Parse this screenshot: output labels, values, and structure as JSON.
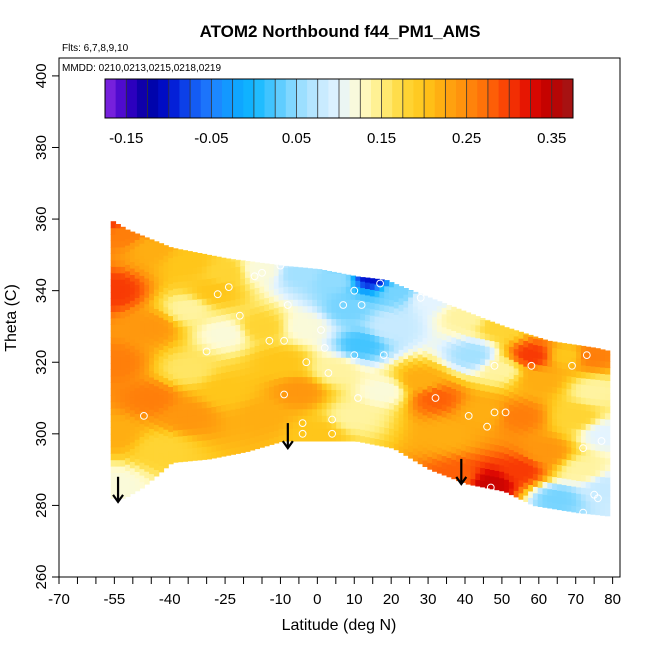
{
  "chart_data": {
    "type": "heatmap",
    "title": "ATOM2 Northbound f44_PM1_AMS",
    "subtitle_flights": "Flts: 6,7,8,9,10",
    "subtitle_dates": "MMDD: 0210,0213,0215,0218,0219",
    "xlabel": "Latitude (deg N)",
    "ylabel": "Theta (C)",
    "xlim": [
      -70,
      82
    ],
    "ylim": [
      260,
      405
    ],
    "x_tick_values": [
      -70,
      -55,
      -40,
      -25,
      -10,
      0,
      10,
      20,
      30,
      40,
      50,
      60,
      70,
      80
    ],
    "x_tick_labels": [
      "-70",
      "-55",
      "-40",
      "-25",
      "-10",
      "0",
      "10",
      "20",
      "30",
      "40",
      "50",
      "60",
      "70",
      "80"
    ],
    "x_minor_ticks": [
      -65,
      -60,
      -50,
      -45,
      -35,
      -30,
      -20,
      -15,
      -5,
      5,
      15,
      25,
      35,
      45,
      55,
      65,
      75
    ],
    "y_tick_values": [
      260,
      280,
      300,
      320,
      340,
      360,
      380,
      400
    ],
    "y_tick_labels": [
      "260",
      "280",
      "300",
      "320",
      "340",
      "360",
      "380",
      "400"
    ],
    "colorbar": {
      "range": [
        -0.175,
        0.375
      ],
      "tick_values": [
        -0.15,
        -0.05,
        0.05,
        0.15,
        0.25,
        0.35
      ],
      "tick_labels": [
        "-0.15",
        "-0.05",
        "0.05",
        "0.15",
        "0.25",
        "0.35"
      ],
      "color_stops": [
        {
          "v": -0.175,
          "c": "#8a2be2"
        },
        {
          "v": -0.15,
          "c": "#3b00c8"
        },
        {
          "v": -0.125,
          "c": "#0000a0"
        },
        {
          "v": -0.1,
          "c": "#0010d0"
        },
        {
          "v": -0.075,
          "c": "#1050f0"
        },
        {
          "v": -0.05,
          "c": "#2080ff"
        },
        {
          "v": -0.025,
          "c": "#0fa0ff"
        },
        {
          "v": 0.0,
          "c": "#10b8ff"
        },
        {
          "v": 0.025,
          "c": "#50c8ff"
        },
        {
          "v": 0.05,
          "c": "#90dcff"
        },
        {
          "v": 0.075,
          "c": "#c0e8ff"
        },
        {
          "v": 0.1,
          "c": "#e4f4ff"
        },
        {
          "v": 0.125,
          "c": "#fffbd0"
        },
        {
          "v": 0.15,
          "c": "#ffee80"
        },
        {
          "v": 0.175,
          "c": "#ffd83a"
        },
        {
          "v": 0.2,
          "c": "#ffc61a"
        },
        {
          "v": 0.225,
          "c": "#ffa810"
        },
        {
          "v": 0.25,
          "c": "#ff8c0c"
        },
        {
          "v": 0.275,
          "c": "#ff6a08"
        },
        {
          "v": 0.3,
          "c": "#f83a04"
        },
        {
          "v": 0.325,
          "c": "#e00a02"
        },
        {
          "v": 0.35,
          "c": "#bc0000"
        },
        {
          "v": 0.375,
          "c": "#a01818"
        }
      ]
    },
    "field_points": [
      {
        "lat": -57,
        "theta": 360,
        "value": 0.3
      },
      {
        "lat": -52,
        "theta": 356,
        "value": 0.26
      },
      {
        "lat": -45,
        "theta": 352,
        "value": 0.22
      },
      {
        "lat": -35,
        "theta": 348,
        "value": 0.2
      },
      {
        "lat": -25,
        "theta": 345,
        "value": 0.18
      },
      {
        "lat": -15,
        "theta": 346,
        "value": 0.12
      },
      {
        "lat": -5,
        "theta": 345,
        "value": 0.06
      },
      {
        "lat": 5,
        "theta": 343,
        "value": 0.05
      },
      {
        "lat": 15,
        "theta": 344,
        "value": -0.1
      },
      {
        "lat": 22,
        "theta": 340,
        "value": 0.04
      },
      {
        "lat": 30,
        "theta": 338,
        "value": 0.1
      },
      {
        "lat": 40,
        "theta": 333,
        "value": 0.14
      },
      {
        "lat": 50,
        "theta": 330,
        "value": 0.18
      },
      {
        "lat": 58,
        "theta": 322,
        "value": 0.3
      },
      {
        "lat": 68,
        "theta": 322,
        "value": 0.2
      },
      {
        "lat": 74,
        "theta": 322,
        "value": 0.26
      },
      {
        "lat": -55,
        "theta": 340,
        "value": 0.3
      },
      {
        "lat": -55,
        "theta": 320,
        "value": 0.26
      },
      {
        "lat": -55,
        "theta": 300,
        "value": 0.22
      },
      {
        "lat": -55,
        "theta": 286,
        "value": 0.12
      },
      {
        "lat": -45,
        "theta": 330,
        "value": 0.24
      },
      {
        "lat": -45,
        "theta": 310,
        "value": 0.26
      },
      {
        "lat": -42,
        "theta": 296,
        "value": 0.18
      },
      {
        "lat": -35,
        "theta": 335,
        "value": 0.14
      },
      {
        "lat": -35,
        "theta": 318,
        "value": 0.16
      },
      {
        "lat": -35,
        "theta": 305,
        "value": 0.24
      },
      {
        "lat": -28,
        "theta": 340,
        "value": 0.2
      },
      {
        "lat": -25,
        "theta": 328,
        "value": 0.12
      },
      {
        "lat": -25,
        "theta": 312,
        "value": 0.2
      },
      {
        "lat": -15,
        "theta": 330,
        "value": 0.18
      },
      {
        "lat": -15,
        "theta": 305,
        "value": 0.22
      },
      {
        "lat": -10,
        "theta": 320,
        "value": 0.2
      },
      {
        "lat": -5,
        "theta": 312,
        "value": 0.24
      },
      {
        "lat": -3,
        "theta": 330,
        "value": 0.12
      },
      {
        "lat": 0,
        "theta": 300,
        "value": 0.2
      },
      {
        "lat": 5,
        "theta": 318,
        "value": 0.14
      },
      {
        "lat": 8,
        "theta": 335,
        "value": 0.04
      },
      {
        "lat": 10,
        "theta": 305,
        "value": 0.14
      },
      {
        "lat": 12,
        "theta": 325,
        "value": 0.02
      },
      {
        "lat": 18,
        "theta": 312,
        "value": 0.12
      },
      {
        "lat": 20,
        "theta": 330,
        "value": 0.08
      },
      {
        "lat": 28,
        "theta": 315,
        "value": 0.22
      },
      {
        "lat": 32,
        "theta": 310,
        "value": 0.28
      },
      {
        "lat": 35,
        "theta": 300,
        "value": 0.22
      },
      {
        "lat": 38,
        "theta": 288,
        "value": 0.28
      },
      {
        "lat": 42,
        "theta": 322,
        "value": 0.06
      },
      {
        "lat": 45,
        "theta": 306,
        "value": 0.22
      },
      {
        "lat": 47,
        "theta": 286,
        "value": 0.34
      },
      {
        "lat": 50,
        "theta": 318,
        "value": 0.14
      },
      {
        "lat": 55,
        "theta": 305,
        "value": 0.26
      },
      {
        "lat": 55,
        "theta": 290,
        "value": 0.3
      },
      {
        "lat": 60,
        "theta": 315,
        "value": 0.22
      },
      {
        "lat": 62,
        "theta": 295,
        "value": 0.24
      },
      {
        "lat": 65,
        "theta": 282,
        "value": 0.04
      },
      {
        "lat": 70,
        "theta": 305,
        "value": 0.18
      },
      {
        "lat": 72,
        "theta": 290,
        "value": 0.14
      },
      {
        "lat": 75,
        "theta": 312,
        "value": 0.14
      },
      {
        "lat": 78,
        "theta": 300,
        "value": 0.1
      },
      {
        "lat": 78,
        "theta": 285,
        "value": 0.08
      }
    ],
    "domain_top_boundary": [
      [
        -57,
        360
      ],
      [
        -52,
        357
      ],
      [
        -40,
        352
      ],
      [
        -25,
        349
      ],
      [
        -10,
        347
      ],
      [
        0,
        346
      ],
      [
        10,
        344
      ],
      [
        18,
        343
      ],
      [
        25,
        340
      ],
      [
        35,
        336
      ],
      [
        50,
        330
      ],
      [
        62,
        326
      ],
      [
        75,
        324
      ],
      [
        79,
        323
      ]
    ],
    "domain_bottom_boundary": [
      [
        79,
        277
      ],
      [
        70,
        278
      ],
      [
        58,
        280
      ],
      [
        50,
        284
      ],
      [
        40,
        286
      ],
      [
        30,
        290
      ],
      [
        20,
        296
      ],
      [
        10,
        298
      ],
      [
        0,
        298
      ],
      [
        -10,
        298
      ],
      [
        -20,
        295
      ],
      [
        -30,
        293
      ],
      [
        -40,
        292
      ],
      [
        -48,
        285
      ],
      [
        -53,
        282
      ],
      [
        -55,
        282
      ]
    ],
    "sample_points": [
      {
        "lat": -47,
        "theta": 305
      },
      {
        "lat": -27,
        "theta": 339
      },
      {
        "lat": -24,
        "theta": 341
      },
      {
        "lat": -21,
        "theta": 333
      },
      {
        "lat": -17,
        "theta": 344
      },
      {
        "lat": -15,
        "theta": 345
      },
      {
        "lat": -10,
        "theta": 347
      },
      {
        "lat": -8,
        "theta": 336
      },
      {
        "lat": -9,
        "theta": 326
      },
      {
        "lat": -13,
        "theta": 326
      },
      {
        "lat": -30,
        "theta": 323
      },
      {
        "lat": -9,
        "theta": 311
      },
      {
        "lat": -3,
        "theta": 320
      },
      {
        "lat": -4,
        "theta": 303
      },
      {
        "lat": -4,
        "theta": 300
      },
      {
        "lat": 1,
        "theta": 329
      },
      {
        "lat": 2,
        "theta": 324
      },
      {
        "lat": 3,
        "theta": 317
      },
      {
        "lat": 4,
        "theta": 304
      },
      {
        "lat": 4,
        "theta": 300
      },
      {
        "lat": 7,
        "theta": 336
      },
      {
        "lat": 10,
        "theta": 340
      },
      {
        "lat": 12,
        "theta": 336
      },
      {
        "lat": 11,
        "theta": 310
      },
      {
        "lat": 10,
        "theta": 322
      },
      {
        "lat": 15,
        "theta": 345
      },
      {
        "lat": 17,
        "theta": 342
      },
      {
        "lat": 18,
        "theta": 322
      },
      {
        "lat": 28,
        "theta": 338
      },
      {
        "lat": 32,
        "theta": 310
      },
      {
        "lat": 41,
        "theta": 305
      },
      {
        "lat": 46,
        "theta": 302
      },
      {
        "lat": 48,
        "theta": 306
      },
      {
        "lat": 48,
        "theta": 319
      },
      {
        "lat": 51,
        "theta": 306
      },
      {
        "lat": 47,
        "theta": 285
      },
      {
        "lat": 58,
        "theta": 319
      },
      {
        "lat": 69,
        "theta": 319
      },
      {
        "lat": 73,
        "theta": 322
      },
      {
        "lat": 72,
        "theta": 296
      },
      {
        "lat": 75,
        "theta": 283
      },
      {
        "lat": 77,
        "theta": 298
      },
      {
        "lat": 76,
        "theta": 282
      },
      {
        "lat": 72,
        "theta": 278
      }
    ],
    "arrows": [
      {
        "lat": -54,
        "theta_top": 288,
        "theta_tip": 281
      },
      {
        "lat": -8,
        "theta_top": 303,
        "theta_tip": 296
      },
      {
        "lat": 39,
        "theta_top": 293,
        "theta_tip": 286
      }
    ]
  }
}
